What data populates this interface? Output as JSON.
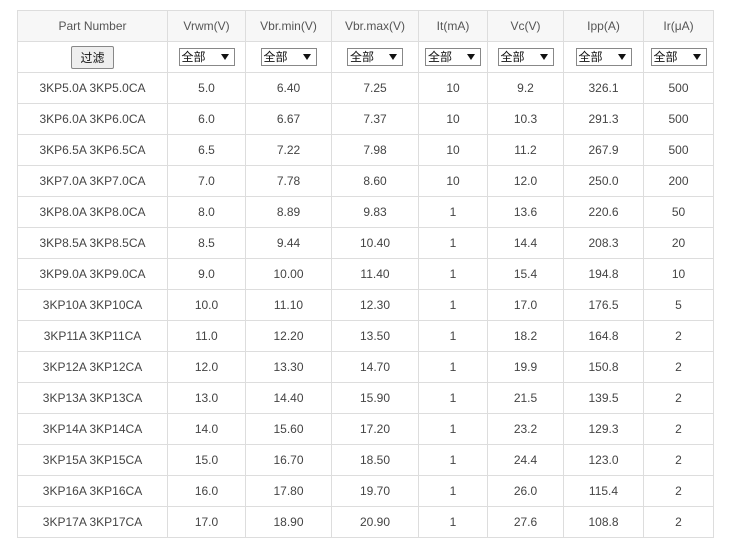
{
  "table": {
    "columns": [
      "Part Number",
      "Vrwm(V)",
      "Vbr.min(V)",
      "Vbr.max(V)",
      "It(mA)",
      "Vc(V)",
      "Ipp(A)",
      "Ir(μA)"
    ],
    "filter_button": "过滤",
    "filters": [
      "全部",
      "全部",
      "全部",
      "全部",
      "全部",
      "全部",
      "全部"
    ],
    "rows": [
      [
        "3KP5.0A 3KP5.0CA",
        "5.0",
        "6.40",
        "7.25",
        "10",
        "9.2",
        "326.1",
        "500"
      ],
      [
        "3KP6.0A 3KP6.0CA",
        "6.0",
        "6.67",
        "7.37",
        "10",
        "10.3",
        "291.3",
        "500"
      ],
      [
        "3KP6.5A 3KP6.5CA",
        "6.5",
        "7.22",
        "7.98",
        "10",
        "11.2",
        "267.9",
        "500"
      ],
      [
        "3KP7.0A 3KP7.0CA",
        "7.0",
        "7.78",
        "8.60",
        "10",
        "12.0",
        "250.0",
        "200"
      ],
      [
        "3KP8.0A 3KP8.0CA",
        "8.0",
        "8.89",
        "9.83",
        "1",
        "13.6",
        "220.6",
        "50"
      ],
      [
        "3KP8.5A 3KP8.5CA",
        "8.5",
        "9.44",
        "10.40",
        "1",
        "14.4",
        "208.3",
        "20"
      ],
      [
        "3KP9.0A 3KP9.0CA",
        "9.0",
        "10.00",
        "11.40",
        "1",
        "15.4",
        "194.8",
        "10"
      ],
      [
        "3KP10A 3KP10CA",
        "10.0",
        "11.10",
        "12.30",
        "1",
        "17.0",
        "176.5",
        "5"
      ],
      [
        "3KP11A 3KP11CA",
        "11.0",
        "12.20",
        "13.50",
        "1",
        "18.2",
        "164.8",
        "2"
      ],
      [
        "3KP12A 3KP12CA",
        "12.0",
        "13.30",
        "14.70",
        "1",
        "19.9",
        "150.8",
        "2"
      ],
      [
        "3KP13A 3KP13CA",
        "13.0",
        "14.40",
        "15.90",
        "1",
        "21.5",
        "139.5",
        "2"
      ],
      [
        "3KP14A 3KP14CA",
        "14.0",
        "15.60",
        "17.20",
        "1",
        "23.2",
        "129.3",
        "2"
      ],
      [
        "3KP15A 3KP15CA",
        "15.0",
        "16.70",
        "18.50",
        "1",
        "24.4",
        "123.0",
        "2"
      ],
      [
        "3KP16A 3KP16CA",
        "16.0",
        "17.80",
        "19.70",
        "1",
        "26.0",
        "115.4",
        "2"
      ],
      [
        "3KP17A 3KP17CA",
        "17.0",
        "18.90",
        "20.90",
        "1",
        "27.6",
        "108.8",
        "2"
      ]
    ]
  }
}
